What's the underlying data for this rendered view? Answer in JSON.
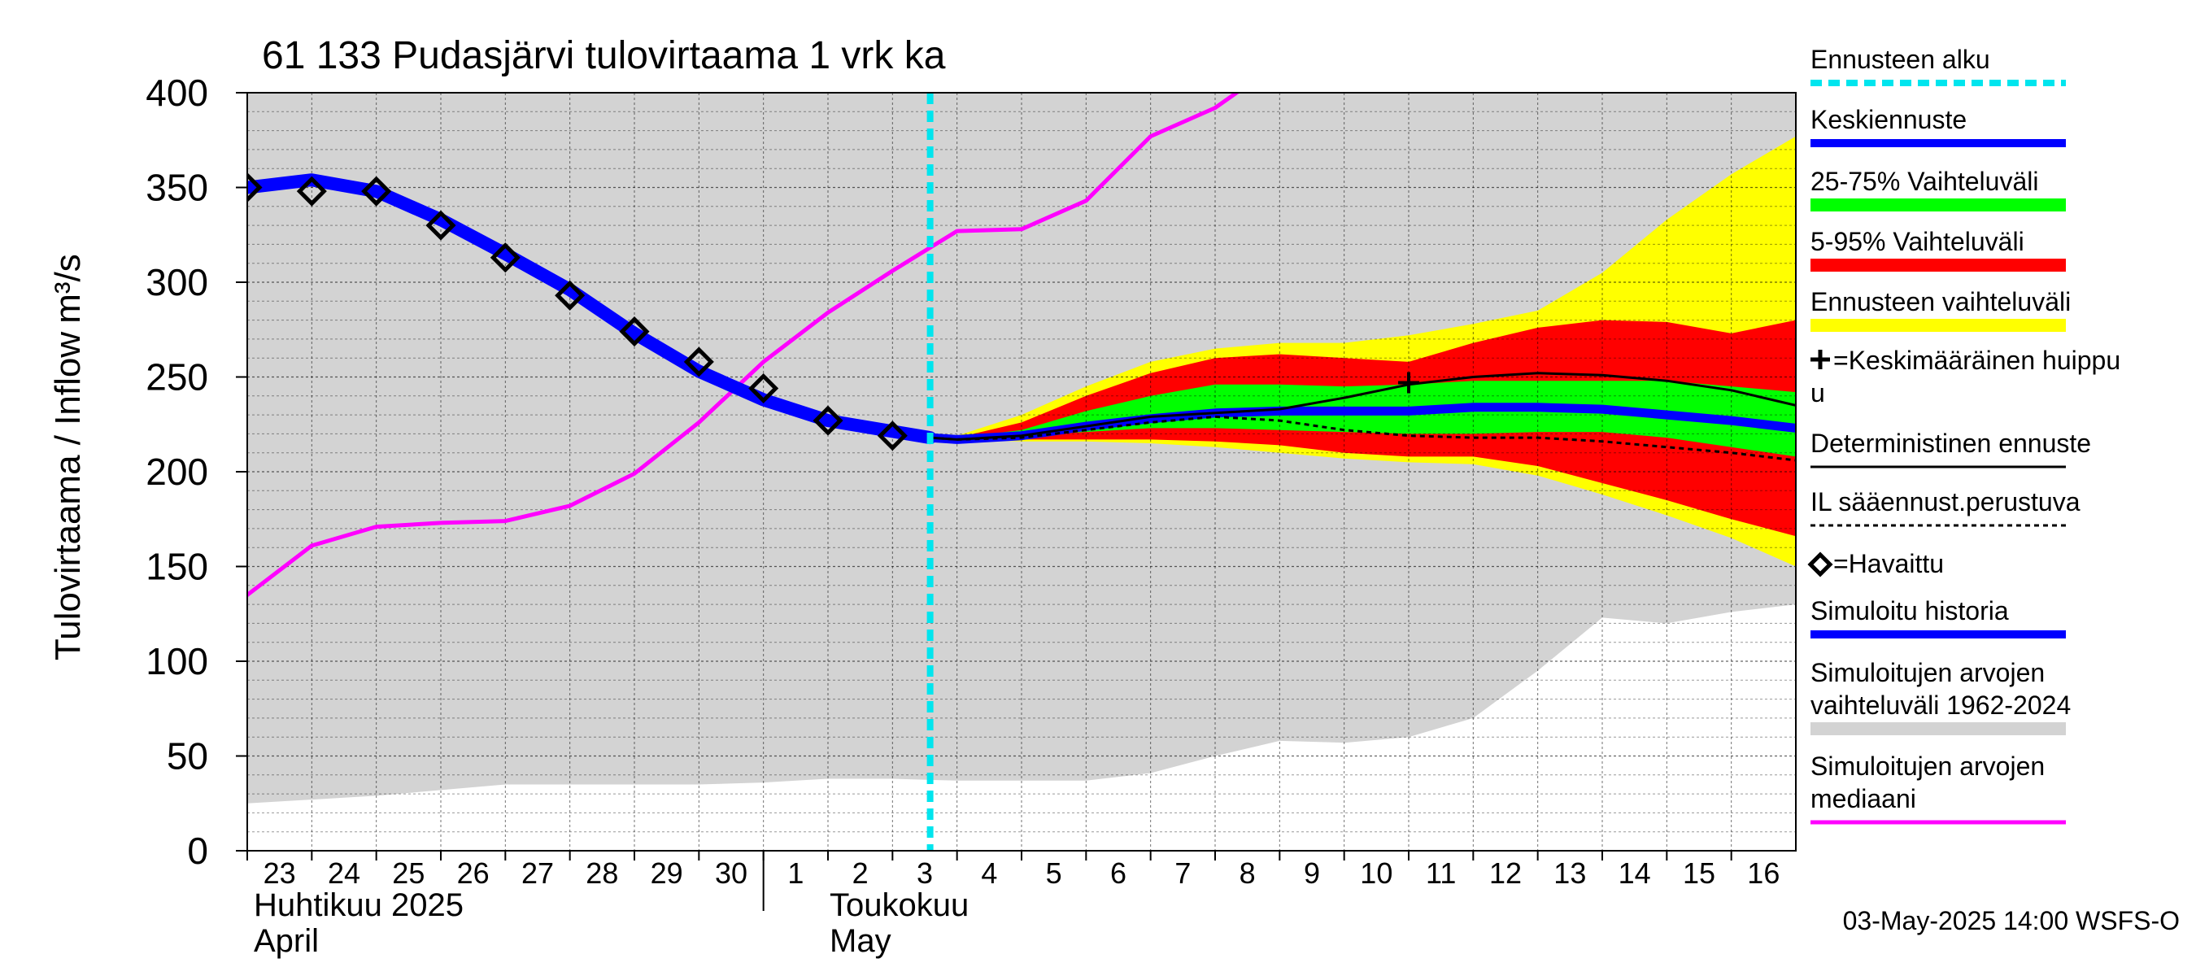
{
  "chart_data": {
    "type": "line",
    "title": "61 133 Pudasjärvi tulovirtaama 1 vrk ka",
    "ylabel": "Tulovirtaama / Inflow",
    "yunit": "m³/s",
    "ylim": [
      0,
      400
    ],
    "yticks": [
      0,
      50,
      100,
      150,
      200,
      250,
      300,
      350,
      400
    ],
    "xlim": [
      "2025-04-23",
      "2025-05-17"
    ],
    "x_tick_labels": [
      "23",
      "24",
      "25",
      "26",
      "27",
      "28",
      "29",
      "30",
      "1",
      "2",
      "3",
      "4",
      "5",
      "6",
      "7",
      "8",
      "9",
      "10",
      "11",
      "12",
      "13",
      "14",
      "15",
      "16"
    ],
    "month_labels": [
      {
        "line1": "Huhtikuu  2025",
        "line2": "April"
      },
      {
        "line1": "Toukokuu",
        "line2": "May"
      }
    ],
    "grid": true,
    "legend_placement": "right",
    "forecast_start": "2025-05-03 14:00",
    "series": [
      {
        "name": "Simuloitujen arvojen vaihteluväli 1962-2024",
        "style": "band",
        "color": "#d3d3d3",
        "x": [
          "2025-04-23",
          "2025-04-24",
          "2025-04-25",
          "2025-04-26",
          "2025-04-27",
          "2025-04-28",
          "2025-04-29",
          "2025-04-30",
          "2025-05-01",
          "2025-05-02",
          "2025-05-03",
          "2025-05-04",
          "2025-05-05",
          "2025-05-06",
          "2025-05-07",
          "2025-05-08",
          "2025-05-09",
          "2025-05-10",
          "2025-05-11",
          "2025-05-12",
          "2025-05-13",
          "2025-05-14",
          "2025-05-15",
          "2025-05-16",
          "2025-05-17"
        ],
        "low": [
          25,
          27,
          29,
          32,
          35,
          35,
          35,
          35,
          36,
          38,
          38,
          37,
          37,
          37,
          41,
          50,
          58,
          57,
          60,
          70,
          95,
          123,
          120,
          126,
          130
        ],
        "high": [
          400,
          400,
          400,
          400,
          400,
          400,
          400,
          400,
          400,
          400,
          400,
          400,
          400,
          400,
          400,
          400,
          400,
          400,
          400,
          400,
          400,
          400,
          400,
          400,
          400
        ]
      },
      {
        "name": "Ennusteen vaihteluväli",
        "style": "band",
        "color": "#ffff00",
        "x": [
          "2025-05-03 14:00",
          "2025-05-04",
          "2025-05-05",
          "2025-05-06",
          "2025-05-07",
          "2025-05-08",
          "2025-05-09",
          "2025-05-10",
          "2025-05-11",
          "2025-05-12",
          "2025-05-13",
          "2025-05-14",
          "2025-05-15",
          "2025-05-16",
          "2025-05-17"
        ],
        "low": [
          218,
          217,
          216,
          216,
          215,
          213,
          210,
          207,
          205,
          204,
          198,
          188,
          177,
          165,
          150
        ],
        "high": [
          218,
          219,
          230,
          245,
          258,
          265,
          268,
          268,
          272,
          278,
          285,
          305,
          333,
          357,
          377
        ]
      },
      {
        "name": "5-95% Vaihteluväli",
        "style": "band",
        "color": "#ff0000",
        "x": [
          "2025-05-03 14:00",
          "2025-05-04",
          "2025-05-05",
          "2025-05-06",
          "2025-05-07",
          "2025-05-08",
          "2025-05-09",
          "2025-05-10",
          "2025-05-11",
          "2025-05-12",
          "2025-05-13",
          "2025-05-14",
          "2025-05-15",
          "2025-05-16",
          "2025-05-17"
        ],
        "low": [
          218,
          217,
          217,
          217,
          217,
          216,
          214,
          210,
          208,
          208,
          203,
          194,
          185,
          175,
          166
        ],
        "high": [
          218,
          218,
          226,
          240,
          252,
          260,
          262,
          260,
          258,
          268,
          276,
          280,
          279,
          273,
          280
        ]
      },
      {
        "name": "25-75% Vaihteluväli",
        "style": "band",
        "color": "#00ff00",
        "x": [
          "2025-05-03 14:00",
          "2025-05-04",
          "2025-05-05",
          "2025-05-06",
          "2025-05-07",
          "2025-05-08",
          "2025-05-09",
          "2025-05-10",
          "2025-05-11",
          "2025-05-12",
          "2025-05-13",
          "2025-05-14",
          "2025-05-15",
          "2025-05-16",
          "2025-05-17"
        ],
        "low": [
          218,
          217,
          219,
          221,
          223,
          223,
          222,
          221,
          220,
          220,
          221,
          221,
          218,
          213,
          208
        ],
        "high": [
          218,
          218,
          222,
          232,
          240,
          246,
          246,
          245,
          246,
          248,
          248,
          248,
          248,
          245,
          242
        ]
      },
      {
        "name": "Simuloitujen arvojen mediaani",
        "style": "line",
        "color": "#ff00ff",
        "x": [
          "2025-04-23",
          "2025-04-24",
          "2025-04-25",
          "2025-04-26",
          "2025-04-27",
          "2025-04-28",
          "2025-04-29",
          "2025-04-30",
          "2025-05-01",
          "2025-05-02",
          "2025-05-03",
          "2025-05-04",
          "2025-05-05",
          "2025-05-06",
          "2025-05-07",
          "2025-05-08",
          "2025-05-09"
        ],
        "y": [
          135,
          161,
          171,
          173,
          174,
          182,
          199,
          226,
          258,
          284,
          306,
          327,
          328,
          343,
          377,
          392,
          416
        ]
      },
      {
        "name": "Simuloitu historia",
        "style": "line",
        "color": "#0000ff",
        "x": [
          "2025-04-23",
          "2025-04-24",
          "2025-04-25",
          "2025-04-26",
          "2025-04-27",
          "2025-04-28",
          "2025-04-29",
          "2025-04-30",
          "2025-05-01",
          "2025-05-02",
          "2025-05-03 14:00"
        ],
        "y": [
          350,
          354,
          348,
          333,
          315,
          296,
          273,
          253,
          238,
          227,
          218
        ]
      },
      {
        "name": "Keskiennuste",
        "style": "line",
        "color": "#0000ff",
        "x": [
          "2025-05-03 14:00",
          "2025-05-04",
          "2025-05-05",
          "2025-05-06",
          "2025-05-07",
          "2025-05-08",
          "2025-05-09",
          "2025-05-10",
          "2025-05-11",
          "2025-05-12",
          "2025-05-13",
          "2025-05-14",
          "2025-05-15",
          "2025-05-16",
          "2025-05-17"
        ],
        "y": [
          218,
          217,
          219,
          224,
          228,
          231,
          232,
          232,
          232,
          234,
          234,
          233,
          230,
          227,
          223
        ]
      },
      {
        "name": "Deterministinen ennuste",
        "style": "line",
        "color": "#000000",
        "x": [
          "2025-05-03 14:00",
          "2025-05-04",
          "2025-05-05",
          "2025-05-06",
          "2025-05-07",
          "2025-05-08",
          "2025-05-09",
          "2025-05-10",
          "2025-05-11",
          "2025-05-12",
          "2025-05-13",
          "2025-05-14",
          "2025-05-15",
          "2025-05-16",
          "2025-05-17"
        ],
        "y": [
          218,
          217,
          219,
          224,
          229,
          231,
          233,
          239,
          246,
          250,
          252,
          251,
          248,
          243,
          235
        ]
      },
      {
        "name": "IL sääennust.perustuva",
        "style": "dashed",
        "color": "#000000",
        "x": [
          "2025-05-03 14:00",
          "2025-05-04",
          "2025-05-05",
          "2025-05-06",
          "2025-05-07",
          "2025-05-08",
          "2025-05-09",
          "2025-05-10",
          "2025-05-11",
          "2025-05-12",
          "2025-05-13",
          "2025-05-14",
          "2025-05-15",
          "2025-05-16",
          "2025-05-17"
        ],
        "y": [
          218,
          217,
          218,
          222,
          226,
          229,
          227,
          222,
          219,
          218,
          218,
          216,
          213,
          210,
          206
        ]
      },
      {
        "name": "Havaittu",
        "style": "diamond",
        "color": "#000000",
        "x": [
          "2025-04-23",
          "2025-04-24",
          "2025-04-25",
          "2025-04-26",
          "2025-04-27",
          "2025-04-28",
          "2025-04-29",
          "2025-04-30",
          "2025-05-01",
          "2025-05-02",
          "2025-05-03"
        ],
        "y": [
          350,
          348,
          348,
          330,
          313,
          293,
          274,
          258,
          244,
          227,
          219
        ]
      },
      {
        "name": "Keskimääräinen huippu",
        "style": "cross",
        "color": "#000000",
        "x": [
          "2025-05-11"
        ],
        "y": [
          247
        ]
      }
    ],
    "legend": [
      {
        "label": "Ennusteen alku",
        "swatch": "dashed",
        "color": "#00e5ee"
      },
      {
        "label": "Keskiennuste",
        "swatch": "line",
        "color": "#0000ff"
      },
      {
        "label": "25-75% Vaihteluväli",
        "swatch": "bar",
        "color": "#00ff00"
      },
      {
        "label": "5-95% Vaihteluväli",
        "swatch": "bar",
        "color": "#ff0000"
      },
      {
        "label": "Ennusteen vaihteluväli",
        "swatch": "bar",
        "color": "#ffff00"
      },
      {
        "label": "=Keskimääräinen huippu",
        "label2": "u",
        "swatch": "cross",
        "color": "#000000"
      },
      {
        "label": "Deterministinen ennuste",
        "swatch": "thin",
        "color": "#000000"
      },
      {
        "label": "IL sääennust.perustuva",
        "swatch": "dotted",
        "color": "#000000"
      },
      {
        "label": "=Havaittu",
        "swatch": "diamond",
        "color": "#000000"
      },
      {
        "label": "Simuloitu historia",
        "swatch": "line",
        "color": "#0000ff"
      },
      {
        "label": "Simuloitujen arvojen",
        "label2": "vaihteluväli 1962-2024",
        "swatch": "bar",
        "color": "#d3d3d3"
      },
      {
        "label": "Simuloitujen arvojen",
        "label2": "mediaani",
        "swatch": "line",
        "color": "#ff00ff"
      }
    ],
    "footer": "03-May-2025 14:00 WSFS-O"
  }
}
